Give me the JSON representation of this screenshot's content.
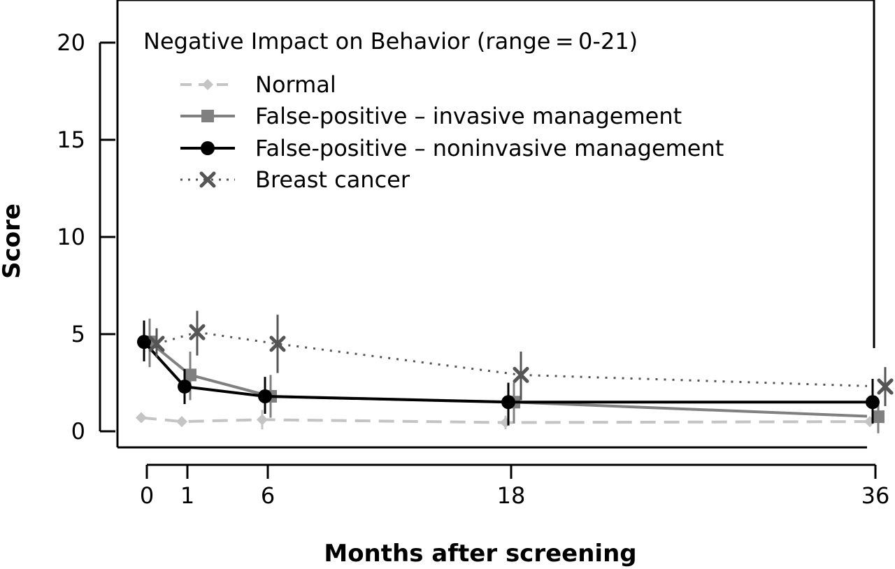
{
  "chart_data": {
    "type": "line",
    "title": "Negative Impact on Behavior (range = 0-21)",
    "xlabel": "Months after screening",
    "ylabel": "Score",
    "x_ticks": [
      0,
      1,
      6,
      18,
      36
    ],
    "y_ticks": [
      0,
      5,
      10,
      15,
      20
    ],
    "ylim": [
      -0.8,
      22
    ],
    "grid": false,
    "legend_position": "top-left",
    "series": [
      {
        "name": "Normal",
        "color": "#c4c4c4",
        "line_style": "dashed",
        "marker": "diamond",
        "x": [
          0,
          1,
          6,
          18,
          36
        ],
        "y": [
          0.7,
          0.5,
          0.6,
          0.45,
          0.5
        ],
        "err_low": [
          0.6,
          0.4,
          0.1,
          0.1,
          0.4
        ],
        "err_high": [
          0.8,
          0.6,
          1.1,
          0.8,
          0.6
        ]
      },
      {
        "name": "False-positive – invasive management",
        "color": "#808080",
        "line_style": "solid",
        "marker": "square",
        "x": [
          0,
          1,
          6,
          18,
          36
        ],
        "y": [
          4.6,
          2.9,
          1.8,
          1.5,
          0.75
        ],
        "err_low": [
          3.3,
          1.6,
          0.7,
          0.4,
          -0.1
        ],
        "err_high": [
          5.8,
          4.1,
          2.9,
          2.5,
          1.6
        ]
      },
      {
        "name": "False-positive – noninvasive management",
        "color": "#000000",
        "line_style": "solid",
        "marker": "circle",
        "x": [
          0,
          1,
          6,
          18,
          36
        ],
        "y": [
          4.6,
          2.3,
          1.8,
          1.5,
          1.5
        ],
        "err_low": [
          3.6,
          1.4,
          0.9,
          0.3,
          0.4
        ],
        "err_high": [
          5.7,
          3.2,
          2.8,
          2.5,
          2.7
        ]
      },
      {
        "name": "Breast cancer",
        "color": "#555555",
        "line_style": "dotted",
        "marker": "x",
        "x": [
          0,
          1,
          6,
          18,
          36
        ],
        "y": [
          4.5,
          5.1,
          4.5,
          2.9,
          2.3
        ],
        "err_low": [
          3.8,
          3.9,
          3.0,
          1.6,
          1.3
        ],
        "err_high": [
          5.3,
          6.2,
          6.0,
          4.1,
          3.3
        ]
      }
    ]
  }
}
